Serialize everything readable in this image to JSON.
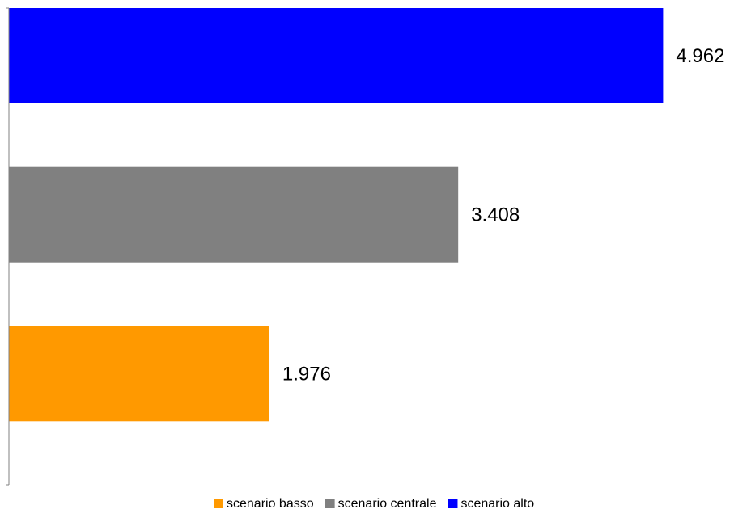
{
  "chart_data": {
    "type": "bar",
    "orientation": "horizontal",
    "categories": [
      "scenario alto",
      "scenario centrale",
      "scenario basso"
    ],
    "values": [
      4.962,
      3.408,
      1.976
    ],
    "value_labels": [
      "4.962",
      "3.408",
      "1.976"
    ],
    "colors": [
      "#0000ff",
      "#808080",
      "#ff9900"
    ],
    "xlim": [
      0,
      5.5
    ],
    "grid": false,
    "legend_position": "bottom",
    "legend": [
      {
        "label": "scenario basso",
        "color": "#ff9900"
      },
      {
        "label": "scenario centrale",
        "color": "#808080"
      },
      {
        "label": "scenario alto",
        "color": "#0000ff"
      }
    ]
  }
}
